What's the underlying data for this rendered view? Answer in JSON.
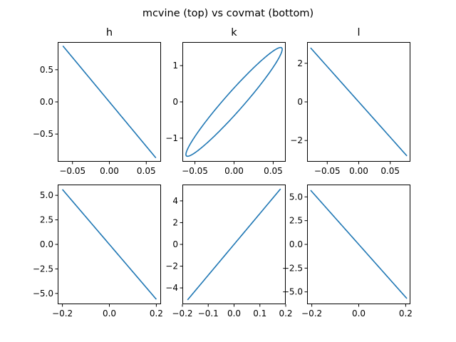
{
  "figure": {
    "suptitle": "mcvine (top) vs covmat (bottom)"
  },
  "colors": {
    "line": "#1f77b4",
    "background": "#ffffff",
    "axes": "#000000"
  },
  "chart_data": [
    {
      "type": "line",
      "title": "h",
      "row": "top",
      "column": 1,
      "xlim": [
        -0.07,
        0.07
      ],
      "ylim": [
        -0.93,
        0.93
      ],
      "xticks": [
        -0.05,
        0.0,
        0.05
      ],
      "xticklabels": [
        "−0.05",
        "0.00",
        "0.05"
      ],
      "yticks": [
        -0.5,
        0.0,
        0.5
      ],
      "yticklabels": [
        "−0.5",
        "0.0",
        "0.5"
      ],
      "ellipse": {
        "center": [
          0,
          0
        ],
        "x_max": 0.063,
        "y_max": 0.87,
        "y_at_x_max": -0.87,
        "correlation": "negative"
      }
    },
    {
      "type": "line",
      "title": "k",
      "row": "top",
      "column": 2,
      "xlim": [
        -0.066,
        0.066
      ],
      "ylim": [
        -1.65,
        1.65
      ],
      "xticks": [
        -0.05,
        0.0,
        0.05
      ],
      "xticklabels": [
        "−0.05",
        "0.00",
        "0.05"
      ],
      "yticks": [
        -1,
        0,
        1
      ],
      "yticklabels": [
        "−1",
        "0",
        "1"
      ],
      "ellipse": {
        "center": [
          0,
          0
        ],
        "x_max": 0.0615,
        "y_max": 1.5,
        "y_at_x_max": 1.45,
        "correlation": "positive"
      }
    },
    {
      "type": "line",
      "title": "l",
      "row": "top",
      "column": 3,
      "xlim": [
        -0.082,
        0.082
      ],
      "ylim": [
        -3.1,
        3.1
      ],
      "xticks": [
        -0.05,
        0.0,
        0.05
      ],
      "xticklabels": [
        "−0.05",
        "0.00",
        "0.05"
      ],
      "yticks": [
        -2,
        0,
        2
      ],
      "yticklabels": [
        "−2",
        "0",
        "2"
      ],
      "ellipse": {
        "center": [
          0,
          0
        ],
        "x_max": 0.0765,
        "y_max": 2.8,
        "y_at_x_max": -2.8,
        "correlation": "negative"
      }
    },
    {
      "type": "line",
      "title": "",
      "row": "bottom",
      "column": 1,
      "xlim": [
        -0.22,
        0.22
      ],
      "ylim": [
        -6.1,
        6.1
      ],
      "xticks": [
        -0.2,
        0.0,
        0.2
      ],
      "xticklabels": [
        "−0.2",
        "0.0",
        "0.2"
      ],
      "yticks": [
        -5.0,
        -2.5,
        0.0,
        2.5,
        5.0
      ],
      "yticklabels": [
        "−5.0",
        "−2.5",
        "0.0",
        "2.5",
        "5.0"
      ],
      "ellipse": {
        "center": [
          0,
          0
        ],
        "x_max": 0.2,
        "y_max": 5.6,
        "y_at_x_max": -5.6,
        "correlation": "negative"
      }
    },
    {
      "type": "line",
      "title": "",
      "row": "bottom",
      "column": 2,
      "xlim": [
        -0.2,
        0.2
      ],
      "ylim": [
        -5.5,
        5.5
      ],
      "xticks": [
        -0.2,
        -0.1,
        0.0,
        0.1,
        0.2
      ],
      "xticklabels": [
        "−0.2",
        "−0.1",
        "0.0",
        "0.1",
        "0.2"
      ],
      "yticks": [
        -4,
        -2,
        0,
        2,
        4
      ],
      "yticklabels": [
        "−4",
        "−2",
        "0",
        "2",
        "4"
      ],
      "ellipse": {
        "center": [
          0,
          0
        ],
        "x_max": 0.18,
        "y_max": 5.1,
        "y_at_x_max": 5.1,
        "correlation": "positive"
      }
    },
    {
      "type": "line",
      "title": "",
      "row": "bottom",
      "column": 3,
      "xlim": [
        -0.22,
        0.22
      ],
      "ylim": [
        -6.3,
        6.3
      ],
      "xticks": [
        -0.2,
        0.0,
        0.2
      ],
      "xticklabels": [
        "−0.2",
        "0.0",
        "0.2"
      ],
      "yticks": [
        -5.0,
        -2.5,
        0.0,
        2.5,
        5.0
      ],
      "yticklabels": [
        "−5.0",
        "−2.5",
        "0.0",
        "2.5",
        "5.0"
      ],
      "ellipse": {
        "center": [
          0,
          0
        ],
        "x_max": 0.205,
        "y_max": 5.7,
        "y_at_x_max": -5.7,
        "correlation": "negative"
      }
    }
  ]
}
